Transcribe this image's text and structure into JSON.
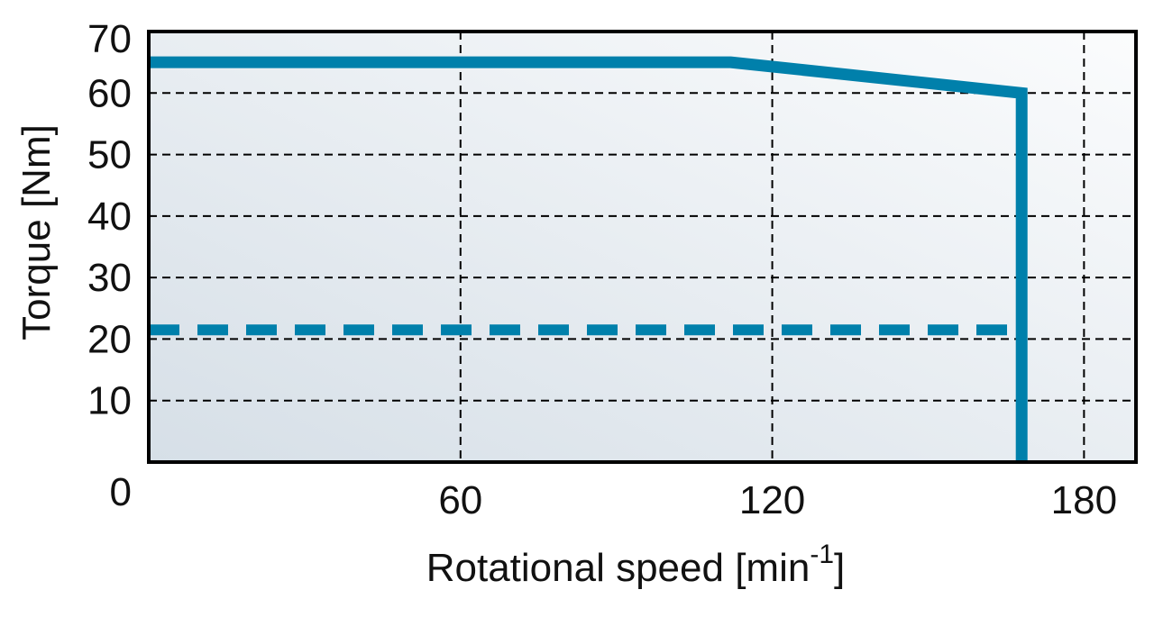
{
  "chart_data": {
    "type": "line",
    "xlabel": "Rotational speed [min",
    "xlabel_superscript": "-1",
    "xlabel_suffix": "]",
    "ylabel": "Torque [Nm]",
    "xlim": [
      0,
      190
    ],
    "ylim": [
      0,
      70
    ],
    "x_ticks": [
      {
        "value": 60,
        "label": "60"
      },
      {
        "value": 120,
        "label": "120"
      },
      {
        "value": 180,
        "label": "180"
      }
    ],
    "y_ticks": [
      {
        "value": 0,
        "label": "0"
      },
      {
        "value": 10,
        "label": "10"
      },
      {
        "value": 20,
        "label": "20"
      },
      {
        "value": 30,
        "label": "30"
      },
      {
        "value": 40,
        "label": "40"
      },
      {
        "value": 50,
        "label": "50"
      },
      {
        "value": 60,
        "label": "60"
      },
      {
        "value": 70,
        "label": "70"
      }
    ],
    "grid": true,
    "grid_style": "dashed",
    "series": [
      {
        "style": "solid",
        "color": "#0080ab",
        "points": [
          [
            0,
            65
          ],
          [
            112,
            65
          ],
          [
            168,
            60
          ],
          [
            168,
            0
          ]
        ]
      },
      {
        "style": "dashed",
        "color": "#0080ab",
        "points": [
          [
            0,
            21.5
          ],
          [
            168,
            21.5
          ]
        ]
      }
    ],
    "colors": {
      "plot_background_dark": "#d6dfe7",
      "plot_background_light": "#fbfcfd",
      "frame": "#000000",
      "grid": "#000000"
    }
  }
}
